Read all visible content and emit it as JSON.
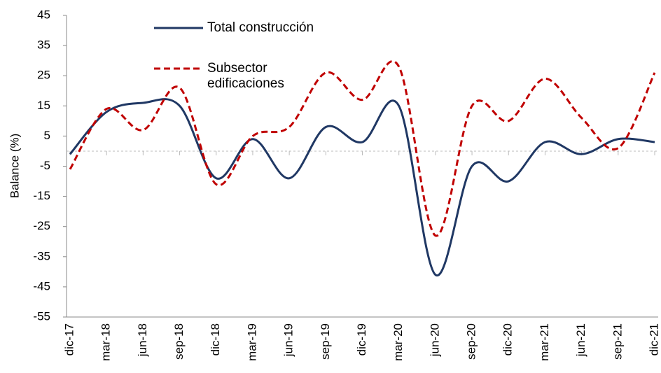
{
  "chart_data": {
    "type": "line",
    "y_label": "Balance (%)",
    "categories": [
      "dic-17",
      "mar-18",
      "jun-18",
      "sep-18",
      "dic-18",
      "mar-19",
      "jun-19",
      "sep-19",
      "dic-19",
      "mar-20",
      "jun-20",
      "sep-20",
      "dic-20",
      "mar-21",
      "jun-21",
      "sep-21",
      "dic-21"
    ],
    "series": [
      {
        "name": "Total construcción",
        "color": "#203864",
        "dash": false,
        "values": [
          -1,
          13,
          16,
          15,
          -9,
          4,
          -9,
          8,
          3,
          15,
          -41,
          -5,
          -10,
          3,
          -1,
          4,
          3
        ]
      },
      {
        "name": "Subsector edificaciones",
        "color": "#c00000",
        "dash": true,
        "values": [
          -6,
          14,
          7,
          21,
          -11,
          5,
          8,
          26,
          17,
          28,
          -28,
          15,
          10,
          24,
          11,
          1,
          26
        ]
      }
    ],
    "ylim": [
      -55,
      45
    ],
    "yticks": [
      -55,
      -45,
      -35,
      -25,
      -15,
      -5,
      5,
      15,
      25,
      35,
      45
    ]
  }
}
